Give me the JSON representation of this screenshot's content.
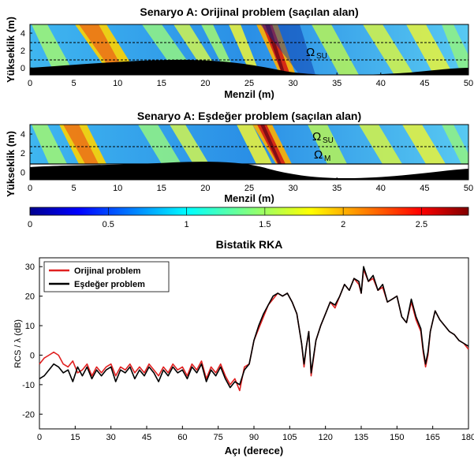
{
  "panels": [
    {
      "title": "Senaryo A: Orijinal problem (saçılan alan)",
      "xlabel": "Menzil (m)",
      "ylabel": "Yükseklik (m)",
      "xticks": [
        "0",
        "5",
        "10",
        "15",
        "20",
        "25",
        "30",
        "35",
        "40",
        "45",
        "50"
      ],
      "yticks": [
        "0",
        "2",
        "4"
      ],
      "annotations": [
        {
          "label": "Ω",
          "sub": "SU"
        }
      ]
    },
    {
      "title": "Senaryo A: Eşdeğer problem (saçılan alan)",
      "xlabel": "Menzil (m)",
      "ylabel": "Yükseklik (m)",
      "xticks": [
        "0",
        "5",
        "10",
        "15",
        "20",
        "25",
        "30",
        "35",
        "40",
        "45",
        "50"
      ],
      "yticks": [
        "0",
        "2",
        "4"
      ],
      "annotations": [
        {
          "label": "Ω",
          "sub": "SU"
        },
        {
          "label": "Ω",
          "sub": "M"
        }
      ]
    }
  ],
  "colorbar": {
    "ticks": [
      "0",
      "0.5",
      "1",
      "1.5",
      "2",
      "2.5"
    ],
    "range": [
      0,
      2.8
    ],
    "colormap": "jet"
  },
  "chart_data": {
    "type": "line",
    "title": "Bistatik RKA",
    "xlabel": "Açı (derece)",
    "ylabel": "RCS / λ (dB)",
    "xlim": [
      0,
      180
    ],
    "ylim": [
      -25,
      33
    ],
    "xticks": [
      "0",
      "15",
      "30",
      "45",
      "60",
      "75",
      "90",
      "105",
      "120",
      "135",
      "150",
      "165",
      "180"
    ],
    "yticks": [
      "30",
      "20",
      "10",
      "0",
      "-10",
      "-20"
    ],
    "legend_position": "top-left",
    "series": [
      {
        "name": "Orijinal problem",
        "color": "#e02020",
        "x": [
          0,
          2,
          4,
          6,
          8,
          10,
          12,
          14,
          16,
          18,
          20,
          22,
          24,
          26,
          28,
          30,
          32,
          34,
          36,
          38,
          40,
          42,
          44,
          46,
          48,
          50,
          52,
          54,
          56,
          58,
          60,
          62,
          64,
          66,
          68,
          70,
          72,
          74,
          76,
          78,
          80,
          82,
          84,
          86,
          88,
          90,
          92,
          94,
          96,
          98,
          100,
          102,
          104,
          106,
          108,
          110,
          111,
          112,
          113,
          114,
          116,
          118,
          120,
          122,
          124,
          126,
          128,
          130,
          132,
          134,
          135,
          136,
          138,
          140,
          142,
          144,
          146,
          148,
          150,
          152,
          154,
          156,
          158,
          160,
          161,
          162,
          163,
          164,
          166,
          168,
          170,
          172,
          174,
          176,
          178,
          180
        ],
        "y": [
          -3,
          -1,
          0,
          1,
          0,
          -3,
          -4,
          -2,
          -6,
          -5,
          -3,
          -7,
          -4,
          -6,
          -4,
          -3,
          -7,
          -4,
          -5,
          -3,
          -6,
          -4,
          -6,
          -3,
          -5,
          -7,
          -4,
          -6,
          -3,
          -5,
          -4,
          -7,
          -3,
          -5,
          -2,
          -8,
          -4,
          -6,
          -3,
          -7,
          -10,
          -8,
          -12,
          -4,
          -3,
          5,
          9,
          13,
          17,
          19,
          21,
          20,
          21,
          18,
          14,
          4,
          -4,
          3,
          8,
          -7,
          5,
          10,
          14,
          18,
          16,
          20,
          24,
          22,
          26,
          24,
          21,
          29,
          25,
          26,
          22,
          23,
          18,
          19,
          20,
          13,
          11,
          18,
          12,
          8,
          1,
          -4,
          0,
          8,
          15,
          12,
          10,
          8,
          7,
          5,
          4,
          2
        ]
      },
      {
        "name": "Eşdeğer problem",
        "color": "#000000",
        "x": [
          0,
          2,
          4,
          6,
          8,
          10,
          12,
          14,
          16,
          18,
          20,
          22,
          24,
          26,
          28,
          30,
          32,
          34,
          36,
          38,
          40,
          42,
          44,
          46,
          48,
          50,
          52,
          54,
          56,
          58,
          60,
          62,
          64,
          66,
          68,
          70,
          72,
          74,
          76,
          78,
          80,
          82,
          84,
          86,
          88,
          90,
          92,
          94,
          96,
          98,
          100,
          102,
          104,
          106,
          108,
          110,
          111,
          112,
          113,
          114,
          116,
          118,
          120,
          122,
          124,
          126,
          128,
          130,
          132,
          134,
          135,
          136,
          138,
          140,
          142,
          144,
          146,
          148,
          150,
          152,
          154,
          156,
          158,
          160,
          161,
          162,
          163,
          164,
          166,
          168,
          170,
          172,
          174,
          176,
          178,
          180
        ],
        "y": [
          -8,
          -7,
          -5,
          -3,
          -4,
          -6,
          -5,
          -9,
          -4,
          -7,
          -4,
          -8,
          -5,
          -7,
          -5,
          -4,
          -9,
          -5,
          -6,
          -4,
          -8,
          -5,
          -7,
          -4,
          -6,
          -9,
          -5,
          -7,
          -4,
          -6,
          -5,
          -8,
          -4,
          -6,
          -3,
          -9,
          -5,
          -7,
          -4,
          -8,
          -11,
          -9,
          -10,
          -5,
          -3,
          5,
          10,
          14,
          17,
          20,
          21,
          20,
          21,
          18,
          14,
          4,
          -3,
          3,
          8,
          -6,
          5,
          10,
          14,
          18,
          17,
          20,
          24,
          22,
          26,
          25,
          21,
          30,
          25,
          27,
          22,
          24,
          18,
          19,
          20,
          13,
          11,
          19,
          13,
          9,
          2,
          -3,
          1,
          8,
          15,
          12,
          10,
          8,
          7,
          5,
          4,
          3
        ]
      }
    ]
  }
}
